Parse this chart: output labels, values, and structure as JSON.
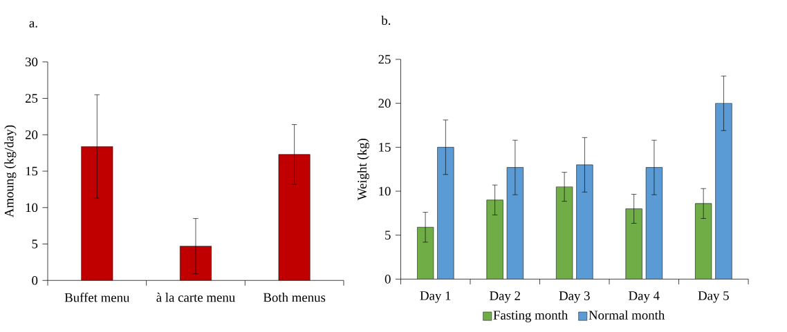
{
  "chart_data": [
    {
      "type": "bar",
      "title": "a.",
      "ylabel": "Amoung (kg/day)",
      "categories": [
        "Buffet menu",
        "à la carte menu",
        "Both menus"
      ],
      "color": "#c00000",
      "values": [
        18.4,
        4.7,
        17.3
      ],
      "errors": [
        7.1,
        3.8,
        4.1
      ],
      "ylim": [
        0,
        30
      ],
      "yticks": [
        0,
        5,
        10,
        15,
        20,
        25,
        30
      ],
      "legend": false,
      "grid": false
    },
    {
      "type": "bar",
      "title": "b.",
      "ylabel": "Weight (kg)",
      "categories": [
        "Day 1",
        "Day 2",
        "Day 3",
        "Day 4",
        "Day 5"
      ],
      "series": [
        {
          "name": "Fasting month",
          "color": "#70ad47",
          "values": [
            5.9,
            9.0,
            10.5,
            8.0,
            8.6
          ],
          "errors": [
            1.7,
            1.7,
            1.65,
            1.65,
            1.7
          ]
        },
        {
          "name": "Normal month",
          "color": "#5b9bd5",
          "values": [
            15.0,
            12.7,
            13.0,
            12.7,
            20.0
          ],
          "errors": [
            3.1,
            3.1,
            3.1,
            3.1,
            3.1
          ]
        }
      ],
      "ylim": [
        0,
        25
      ],
      "yticks": [
        0,
        5,
        10,
        15,
        20,
        25
      ],
      "legend": "bottom",
      "grid": false
    }
  ]
}
